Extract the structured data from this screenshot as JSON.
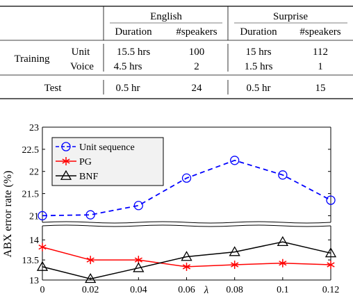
{
  "table": {
    "groups": [
      "English",
      "Surprise"
    ],
    "subheaders": [
      "Duration",
      "#speakers",
      "Duration",
      "#speakers"
    ],
    "training_label": "Training",
    "rows": [
      {
        "label": "Unit",
        "cells": [
          "15.5 hrs",
          "100",
          "15 hrs",
          "112"
        ]
      },
      {
        "label": "Voice",
        "cells": [
          "4.5 hrs",
          "2",
          "1.5 hrs",
          "1"
        ]
      }
    ],
    "test_row": {
      "label": "Test",
      "cells": [
        "0.5 hr",
        "24",
        "0.5 hr",
        "15"
      ]
    }
  },
  "chart_data": {
    "type": "line",
    "xlabel": "λ",
    "ylabel": "ABX error rate (%)",
    "x": [
      0,
      0.02,
      0.04,
      0.06,
      0.08,
      0.1,
      0.12
    ],
    "x_ticks": [
      "0",
      "0.02",
      "0.04",
      "0.06",
      "0.08",
      "0.1",
      "0.12"
    ],
    "y_ticks_top": [
      "21",
      "21.5",
      "22",
      "22.5",
      "23"
    ],
    "y_ticks_bottom": [
      "13",
      "13.5",
      "14"
    ],
    "ylim_top": [
      20.85,
      23
    ],
    "ylim_bottom": [
      13,
      14.35
    ],
    "axis_break": true,
    "legend_position": "top-left",
    "series": [
      {
        "name": "Unit sequence",
        "values": [
          21.0,
          21.02,
          21.23,
          21.85,
          22.25,
          21.92,
          21.35
        ],
        "color": "#0000ff",
        "marker": "circle",
        "linestyle": "dashed"
      },
      {
        "name": "PG",
        "values": [
          13.82,
          13.5,
          13.5,
          13.33,
          13.38,
          13.42,
          13.38
        ],
        "color": "#ff0000",
        "marker": "star",
        "linestyle": "solid"
      },
      {
        "name": "BNF",
        "values": [
          13.33,
          13.03,
          13.3,
          13.58,
          13.7,
          13.95,
          13.67
        ],
        "color": "#000000",
        "marker": "triangle",
        "linestyle": "solid"
      }
    ]
  }
}
